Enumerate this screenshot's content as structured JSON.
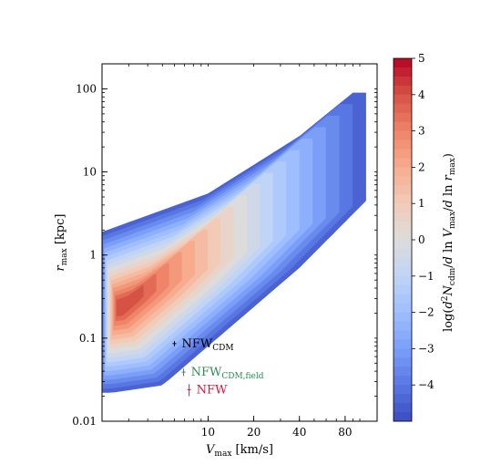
{
  "chart_data": {
    "type": "heatmap",
    "subtype": "filled-contour",
    "xscale": "log",
    "yscale": "log",
    "xlim": [
      2,
      130
    ],
    "ylim": [
      0.01,
      200
    ],
    "xticks": [
      10,
      20,
      40,
      80
    ],
    "xtick_labels": [
      "10",
      "20",
      "40",
      "80"
    ],
    "yticks": [
      0.01,
      0.1,
      1,
      10,
      100
    ],
    "ytick_labels": [
      "0.01",
      "0.1",
      "1",
      "10",
      "100"
    ],
    "xlabel_main": "V",
    "xlabel_sub": "max",
    "xlabel_unit": " [km/s]",
    "ylabel_main": "r",
    "ylabel_sub": "max",
    "ylabel_unit": " [kpc]",
    "colorbar": {
      "range": [
        -5,
        5
      ],
      "ticks": [
        5,
        4,
        3,
        2,
        1,
        0,
        -1,
        -2,
        -3,
        -4
      ],
      "tick_labels": [
        "5",
        "4",
        "3",
        "2",
        "1",
        "0",
        "−1",
        "−2",
        "−3",
        "−4"
      ],
      "label": "log(d²N_cdm/d ln V_max/d ln r_max)",
      "label_parts": [
        "log(",
        "d",
        "2",
        "N",
        "cdm",
        "/",
        "d",
        " ln ",
        "V",
        "max",
        "/",
        "d",
        " ln ",
        "r",
        "max",
        ")"
      ],
      "colormap": "coolwarm",
      "colors": [
        "#3b4cc0",
        "#5977e3",
        "#7b9ff9",
        "#9ebeff",
        "#c0d4f5",
        "#dddcdc",
        "#f2cbb7",
        "#f7ac8e",
        "#ee8468",
        "#d65244",
        "#b40426"
      ]
    },
    "density_ridge": {
      "peak_value": 4.2,
      "peak_x": 2.3,
      "peak_y": 0.21,
      "upper_edge": [
        [
          2,
          1.9
        ],
        [
          10,
          5.5
        ],
        [
          40,
          27
        ],
        [
          90,
          90
        ]
      ],
      "lower_edge": [
        [
          2.3,
          0.022
        ],
        [
          5,
          0.027
        ],
        [
          10,
          0.08
        ],
        [
          40,
          0.7
        ],
        [
          110,
          4.5
        ]
      ]
    },
    "points": [
      {
        "label": "NFW",
        "label_sub": "CDM",
        "x": 6.0,
        "y": 0.086,
        "yerr": [
          0.08,
          0.092
        ],
        "color": "#000000"
      },
      {
        "label": "NFW",
        "label_sub": "CDM,field",
        "x": 6.9,
        "y": 0.039,
        "yerr": [
          0.035,
          0.043
        ],
        "color": "#2e8b57"
      },
      {
        "label": "NFW",
        "label_sub": "",
        "x": 7.5,
        "y": 0.024,
        "yerr": [
          0.02,
          0.028
        ],
        "color": "#dc143c"
      }
    ]
  }
}
